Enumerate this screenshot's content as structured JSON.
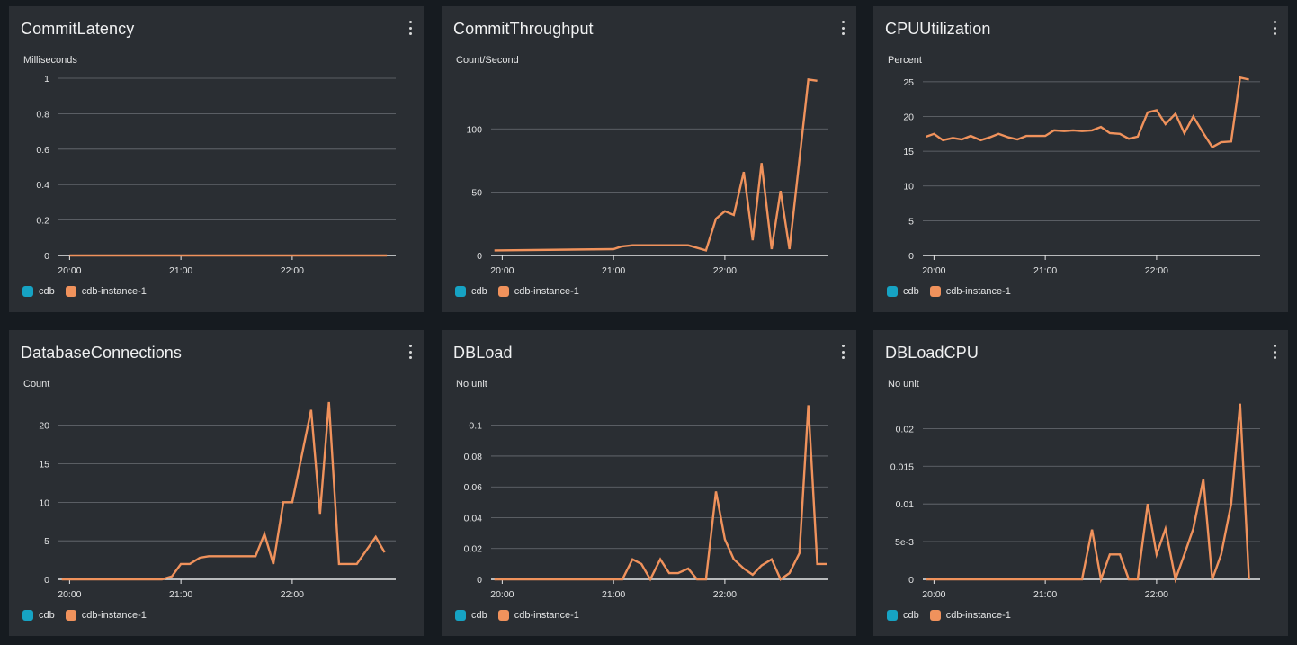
{
  "colors": {
    "cdb": "#16a3c4",
    "instance": "#f0925c"
  },
  "legend": [
    "cdb",
    "cdb-instance-1"
  ],
  "chart_data": [
    {
      "type": "line",
      "title": "CommitLatency",
      "ylabel": "Milliseconds",
      "ylim": [
        0,
        1
      ],
      "yticks": [
        0,
        0.2,
        0.4,
        0.6,
        0.8,
        1
      ],
      "ytick_labels": [
        "0",
        "0.2",
        "0.4",
        "0.6",
        "0.8",
        "1"
      ],
      "xlim": [
        -0.1,
        2.93
      ],
      "xticks": [
        0,
        1,
        2
      ],
      "xtick_labels": [
        "20:00",
        "21:00",
        "22:00"
      ],
      "series": [
        {
          "name": "cdb",
          "x": [],
          "y": []
        },
        {
          "name": "cdb-instance-1",
          "x": [
            0,
            2.85
          ],
          "y": [
            0,
            0
          ]
        }
      ]
    },
    {
      "type": "line",
      "title": "CommitThroughput",
      "ylabel": "Count/Second",
      "ylim": [
        0,
        140
      ],
      "yticks": [
        0,
        50,
        100
      ],
      "ytick_labels": [
        "0",
        "50",
        "100"
      ],
      "xlim": [
        -0.1,
        2.93
      ],
      "xticks": [
        0,
        1,
        2
      ],
      "xtick_labels": [
        "20:00",
        "21:00",
        "22:00"
      ],
      "series": [
        {
          "name": "cdb",
          "x": [],
          "y": []
        },
        {
          "name": "cdb-instance-1",
          "x": [
            -0.07,
            1.0,
            1.07,
            1.17,
            1.67,
            1.83,
            1.92,
            2.0,
            2.08,
            2.17,
            2.25,
            2.33,
            2.42,
            2.5,
            2.58,
            2.75,
            2.83
          ],
          "y": [
            4,
            5,
            7,
            8,
            8,
            4,
            29,
            35,
            32,
            66,
            12,
            73,
            5,
            51,
            5,
            139,
            138
          ]
        }
      ]
    },
    {
      "type": "line",
      "title": "CPUUtilization",
      "ylabel": "Percent",
      "ylim": [
        0,
        25.5
      ],
      "yticks": [
        0,
        5,
        10,
        15,
        20,
        25
      ],
      "ytick_labels": [
        "0",
        "5",
        "10",
        "15",
        "20",
        "25"
      ],
      "xlim": [
        -0.1,
        2.93
      ],
      "xticks": [
        0,
        1,
        2
      ],
      "xtick_labels": [
        "20:00",
        "21:00",
        "22:00"
      ],
      "series": [
        {
          "name": "cdb",
          "x": [],
          "y": []
        },
        {
          "name": "cdb-instance-1",
          "x": [
            -0.07,
            0.0,
            0.08,
            0.17,
            0.25,
            0.33,
            0.42,
            0.5,
            0.58,
            0.67,
            0.75,
            0.83,
            0.92,
            1.0,
            1.08,
            1.17,
            1.25,
            1.33,
            1.42,
            1.5,
            1.58,
            1.67,
            1.75,
            1.83,
            1.92,
            2.0,
            2.08,
            2.17,
            2.25,
            2.33,
            2.42,
            2.5,
            2.58,
            2.67,
            2.75,
            2.83
          ],
          "y": [
            17.1,
            17.5,
            16.6,
            16.9,
            16.7,
            17.2,
            16.6,
            17.0,
            17.5,
            17.0,
            16.7,
            17.2,
            17.2,
            17.2,
            18.0,
            17.9,
            18.0,
            17.9,
            18.0,
            18.5,
            17.6,
            17.5,
            16.8,
            17.1,
            20.6,
            20.9,
            18.9,
            20.4,
            17.6,
            20.0,
            17.6,
            15.6,
            16.3,
            16.4,
            25.6,
            25.3
          ]
        }
      ]
    },
    {
      "type": "line",
      "title": "DatabaseConnections",
      "ylabel": "Count",
      "ylim": [
        0,
        23
      ],
      "yticks": [
        0,
        5,
        10,
        15,
        20
      ],
      "ytick_labels": [
        "0",
        "5",
        "10",
        "15",
        "20"
      ],
      "xlim": [
        -0.1,
        2.93
      ],
      "xticks": [
        0,
        1,
        2
      ],
      "xtick_labels": [
        "20:00",
        "21:00",
        "22:00"
      ],
      "series": [
        {
          "name": "cdb",
          "x": [],
          "y": []
        },
        {
          "name": "cdb-instance-1",
          "x": [
            -0.07,
            0.83,
            0.92,
            1.0,
            1.08,
            1.17,
            1.25,
            1.33,
            1.42,
            1.5,
            1.58,
            1.67,
            1.75,
            1.83,
            1.92,
            2.0,
            2.17,
            2.25,
            2.33,
            2.42,
            2.5,
            2.58,
            2.75,
            2.83
          ],
          "y": [
            0,
            0,
            0.4,
            2,
            2,
            2.8,
            3,
            3,
            3,
            3,
            3,
            3,
            5.9,
            2,
            10,
            10,
            22,
            8.5,
            23,
            2,
            2,
            2,
            5.5,
            3.5
          ]
        }
      ]
    },
    {
      "type": "line",
      "title": "DBLoad",
      "ylabel": "No unit",
      "ylim": [
        0,
        0.115
      ],
      "yticks": [
        0,
        0.02,
        0.04,
        0.06,
        0.08,
        0.1
      ],
      "ytick_labels": [
        "0",
        "0.02",
        "0.04",
        "0.06",
        "0.08",
        "0.1"
      ],
      "xlim": [
        -0.1,
        2.93
      ],
      "xticks": [
        0,
        1,
        2
      ],
      "xtick_labels": [
        "20:00",
        "21:00",
        "22:00"
      ],
      "series": [
        {
          "name": "cdb",
          "x": [],
          "y": []
        },
        {
          "name": "cdb-instance-1",
          "x": [
            -0.07,
            0.92,
            1.0,
            1.08,
            1.17,
            1.25,
            1.33,
            1.42,
            1.5,
            1.58,
            1.67,
            1.75,
            1.83,
            1.92,
            2.0,
            2.08,
            2.17,
            2.25,
            2.33,
            2.42,
            2.5,
            2.58,
            2.67,
            2.75,
            2.83,
            2.92
          ],
          "y": [
            0,
            0,
            0,
            0,
            0.013,
            0.01,
            0,
            0.013,
            0.004,
            0.004,
            0.007,
            0,
            0,
            0.057,
            0.026,
            0.013,
            0.007,
            0.003,
            0.009,
            0.013,
            0,
            0.004,
            0.017,
            0.113,
            0.01,
            0.01
          ]
        }
      ]
    },
    {
      "type": "line",
      "title": "DBLoadCPU",
      "ylabel": "No unit",
      "ylim": [
        0,
        0.0235
      ],
      "yticks": [
        0,
        0.005,
        0.01,
        0.015,
        0.02
      ],
      "ytick_labels": [
        "0",
        "5e-3",
        "0.01",
        "0.015",
        "0.02"
      ],
      "xlim": [
        -0.1,
        2.93
      ],
      "xticks": [
        0,
        1,
        2
      ],
      "xtick_labels": [
        "20:00",
        "21:00",
        "22:00"
      ],
      "series": [
        {
          "name": "cdb",
          "x": [],
          "y": []
        },
        {
          "name": "cdb-instance-1",
          "x": [
            -0.07,
            1.33,
            1.42,
            1.5,
            1.58,
            1.67,
            1.75,
            1.83,
            1.92,
            2.0,
            2.08,
            2.17,
            2.25,
            2.33,
            2.42,
            2.5,
            2.58,
            2.67,
            2.75,
            2.83
          ],
          "y": [
            0,
            0,
            0.0066,
            0,
            0.0033,
            0.0033,
            0,
            0,
            0.01,
            0.0033,
            0.0067,
            0,
            0.0033,
            0.0067,
            0.0133,
            0,
            0.0033,
            0.01,
            0.0233,
            0
          ]
        }
      ]
    }
  ]
}
